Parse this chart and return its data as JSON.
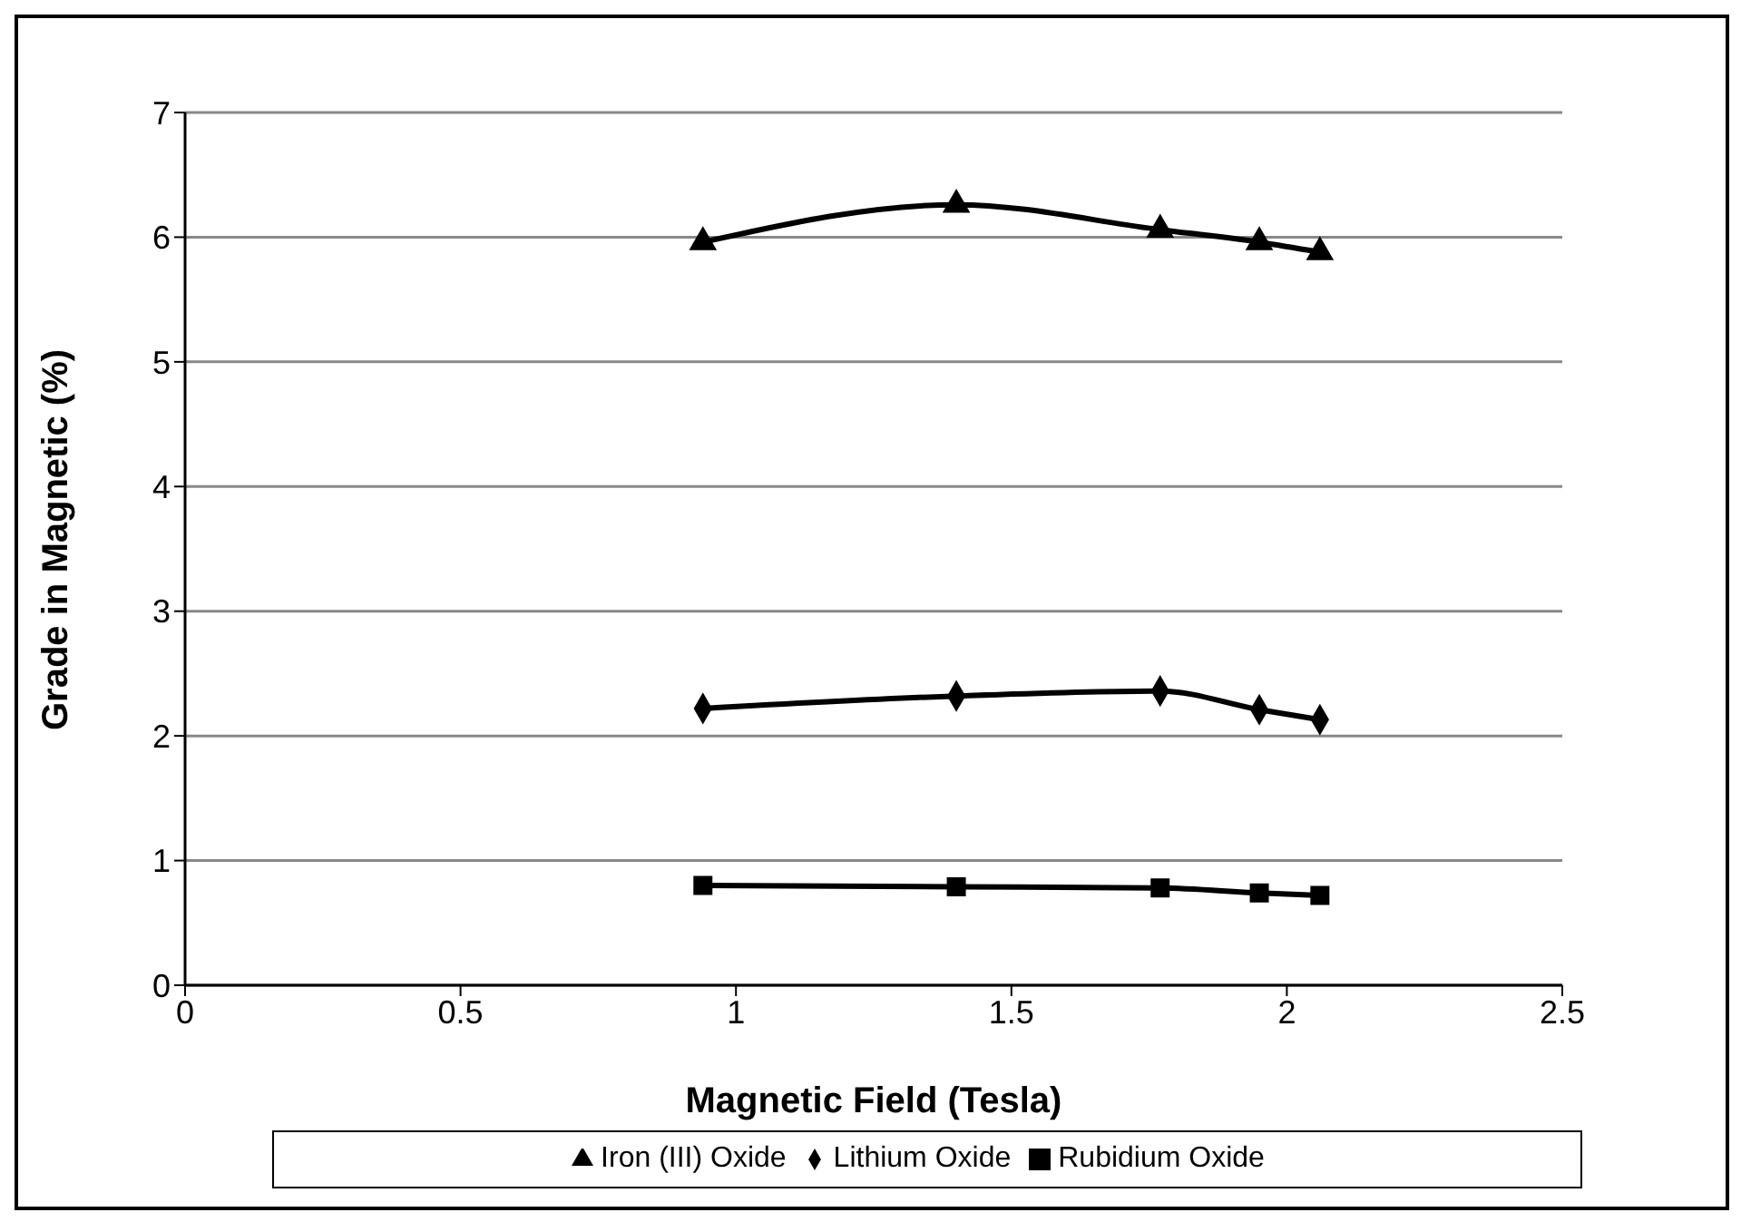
{
  "chart_data": {
    "type": "line",
    "xlabel": "Magnetic Field (Tesla)",
    "ylabel": "Grade in Magnetic (%)",
    "x": [
      0.94,
      1.4,
      1.77,
      1.95,
      2.06
    ],
    "series": [
      {
        "name": "Lithium Oxide",
        "color": "#000000",
        "marker": "diamond",
        "values": [
          2.22,
          2.32,
          2.36,
          2.21,
          2.13
        ]
      },
      {
        "name": "Rubidium Oxide",
        "color": "#000000",
        "marker": "square",
        "values": [
          0.8,
          0.79,
          0.78,
          0.74,
          0.72
        ]
      },
      {
        "name": "Iron (III) Oxide",
        "color": "#000000",
        "marker": "triangle",
        "values": [
          5.96,
          6.26,
          6.06,
          5.96,
          5.88
        ]
      }
    ],
    "xlim": [
      0,
      2.5
    ],
    "xticks": [
      0,
      0.5,
      1,
      1.5,
      2,
      2.5
    ],
    "ylim": [
      0,
      7
    ],
    "yticks": [
      0,
      1,
      2,
      3,
      4,
      5,
      6,
      7
    ],
    "grid": "y",
    "legend": "bottom",
    "line_style": "solid"
  }
}
